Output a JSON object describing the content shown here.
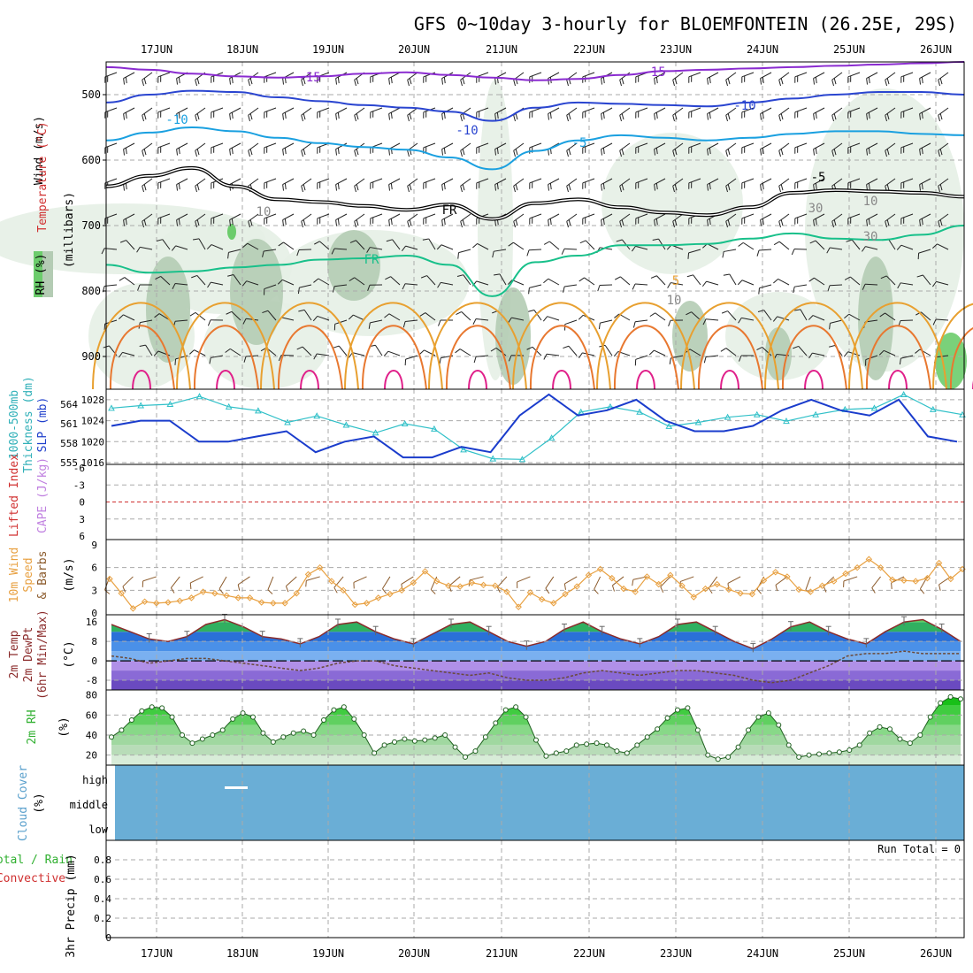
{
  "title": "GFS 0~10day 3-hourly for BLOEMFONTEIN (26.25E, 29S)",
  "colors": {
    "temp_m15": "#8a2bd0",
    "temp_m10": "#2a45d0",
    "temp_m5": "#1aa0e0",
    "freezing": "#000000",
    "temp_5": "#18c08a",
    "temp_10": "#e8a030",
    "temp_15": "#e87830",
    "temp_20": "#e0208a",
    "rh_light": "#e6f0e6",
    "rh_mid": "#b4ccb4",
    "rh_dark": "#8aa08a",
    "rh_green": "#6ccc6c",
    "slp": "#1a3ccc",
    "thickness": "#30c0c8",
    "lifted_index": "#d03030",
    "cape": "#c080e0",
    "wind10": "#e8a040",
    "barb10": "#8b5a2b",
    "temp2m_fill": "#2a7ee0",
    "dewpt_fill": "#b48ee6",
    "rh2m_fill": "#40cc40",
    "cloud": "#6aaed6",
    "rain_total": "#30b030",
    "rain_conv": "#d03030"
  },
  "chart_data": [
    {
      "type": "heatmap",
      "panel": "upper-air cross section",
      "ylabel": "(millibars)",
      "legend_labels": [
        "Wind (m/s)",
        "Temperature (°C)",
        "RH (%)"
      ],
      "yticks": [
        500,
        600,
        700,
        800,
        900
      ],
      "ylim": [
        950,
        450
      ],
      "x_dates": [
        "17JUN",
        "18JUN",
        "19JUN",
        "20JUN",
        "21JUN",
        "22JUN",
        "23JUN",
        "24JUN",
        "25JUN",
        "26JUN"
      ],
      "contour_labels": [
        "-15",
        "-15",
        "-10",
        "-10",
        "-10",
        "-5",
        "-5",
        "FR",
        "FR",
        "5",
        "10",
        "30",
        "30",
        "10",
        "10",
        "30"
      ],
      "isotherms": [
        {
          "name": "-15",
          "pressure": [
            458,
            462,
            468,
            472,
            474,
            472,
            468,
            466,
            470,
            474,
            478,
            476,
            470,
            464,
            462,
            460,
            458,
            456,
            454,
            452,
            450
          ]
        },
        {
          "name": "-10",
          "pressure": [
            512,
            500,
            494,
            496,
            504,
            510,
            516,
            520,
            526,
            540,
            520,
            512,
            514,
            516,
            518,
            512,
            506,
            500,
            496,
            496,
            500
          ]
        },
        {
          "name": "-5",
          "pressure": [
            570,
            558,
            550,
            556,
            566,
            574,
            580,
            584,
            596,
            614,
            586,
            570,
            562,
            566,
            570,
            566,
            560,
            556,
            556,
            560,
            562
          ]
        },
        {
          "name": "FR",
          "pressure": [
            640,
            624,
            612,
            640,
            660,
            664,
            670,
            676,
            668,
            690,
            666,
            660,
            672,
            680,
            684,
            672,
            650,
            646,
            648,
            650,
            656
          ]
        },
        {
          "name": "5",
          "pressure": [
            760,
            772,
            770,
            764,
            760,
            752,
            750,
            746,
            760,
            808,
            756,
            746,
            730,
            730,
            728,
            720,
            712,
            720,
            722,
            714,
            700
          ]
        }
      ]
    },
    {
      "type": "line",
      "panel": "sea level pressure and thickness",
      "series": [
        {
          "name": "Thickness 1000-500mb (dm)",
          "yticks": [
            555,
            558,
            561,
            564
          ],
          "ylim": [
            555,
            565.5
          ],
          "values": [
            563.4,
            563.8,
            564.0,
            565.2,
            563.6,
            563.0,
            561.2,
            562.2,
            560.8,
            559.6,
            561.0,
            560.2,
            557.0,
            555.6,
            555.5,
            558.8,
            562.8,
            563.6,
            562.8,
            560.6,
            561.2,
            562.0,
            562.4,
            561.4,
            562.4,
            563.2,
            563.4,
            565.5,
            563.2,
            562.4
          ]
        },
        {
          "name": "SLP (mb)",
          "yticks": [
            1016,
            1020,
            1024,
            1028
          ],
          "ylim": [
            1016,
            1029
          ],
          "values": [
            1023,
            1024,
            1024,
            1020,
            1020,
            1021,
            1022,
            1018,
            1020,
            1021,
            1017,
            1017,
            1019,
            1018,
            1025,
            1029,
            1025,
            1026,
            1028,
            1024,
            1022,
            1022,
            1023,
            1026,
            1028,
            1026,
            1025,
            1028,
            1021,
            1020
          ]
        }
      ]
    },
    {
      "type": "line",
      "panel": "lifted index and CAPE",
      "series": [
        {
          "name": "Lifted Index",
          "values": []
        },
        {
          "name": "CAPE (J/kg)",
          "values": []
        }
      ],
      "yticks_labels": [
        "-6",
        "-3",
        "0",
        "3",
        "6"
      ],
      "reference_line": 0
    },
    {
      "type": "line",
      "panel": "10m wind",
      "ylabel": "(m/s)",
      "series": [
        {
          "name": "10m Wind Speed & Barbs",
          "values": [
            4.5,
            2.6,
            0.6,
            1.5,
            1.3,
            1.4,
            1.6,
            2.0,
            2.8,
            2.6,
            2.3,
            2.0,
            2.0,
            1.4,
            1.3,
            1.3,
            2.6,
            5.1,
            6.0,
            4.2,
            3.0,
            1.1,
            1.3,
            2.0,
            2.5,
            3.0,
            4.0,
            5.5,
            4.2,
            3.6,
            3.5,
            4.0,
            3.7,
            3.6,
            2.8,
            0.8,
            2.7,
            1.8,
            1.3,
            2.5,
            3.5,
            5.0,
            5.8,
            4.6,
            3.2,
            2.8,
            4.8,
            3.8,
            5.0,
            3.6,
            2.1,
            3.2,
            3.8,
            3.1,
            2.6,
            2.5,
            4.3,
            5.4,
            4.8,
            3.1,
            2.8,
            3.6,
            4.2,
            5.2,
            6.0,
            7.1,
            6.0,
            4.4,
            4.3,
            4.2,
            4.6,
            6.6,
            4.5,
            5.8
          ]
        }
      ],
      "yticks": [
        0,
        3,
        6,
        9
      ],
      "ylim": [
        0,
        9
      ]
    },
    {
      "type": "area",
      "panel": "2m temperature and dewpoint",
      "ylabel": "(°C)",
      "yticks": [
        -8,
        0,
        8,
        16
      ],
      "ylim": [
        -12,
        19
      ],
      "series": [
        {
          "name": "2m Temp",
          "values": [
            15,
            12,
            9,
            8,
            10,
            15,
            17,
            14,
            10,
            9,
            7,
            10,
            15,
            16,
            12,
            9,
            7,
            11,
            15,
            16,
            12,
            8,
            6,
            8,
            13,
            16,
            12,
            9,
            7,
            10,
            15,
            16,
            12,
            8,
            5,
            9,
            14,
            16,
            12,
            9,
            7,
            12,
            16,
            17,
            13,
            8
          ]
        },
        {
          "name": "2m DewPt",
          "values": [
            2,
            1,
            -1,
            0,
            1,
            1,
            0,
            -1,
            -2,
            -3,
            -4,
            -3,
            -1,
            0,
            0,
            -2,
            -3,
            -4,
            -5,
            -6,
            -5,
            -7,
            -8,
            -8,
            -7,
            -5,
            -4,
            -5,
            -6,
            -5,
            -4,
            -4,
            -5,
            -6,
            -8,
            -9,
            -8,
            -5,
            -2,
            2,
            3,
            3,
            4,
            3,
            3,
            3
          ]
        }
      ],
      "series_labels": [
        "2m Temp",
        "2m DewPt",
        "(6hr Min/Max)"
      ]
    },
    {
      "type": "area",
      "panel": "2m relative humidity",
      "ylabel": "(%)",
      "yticks": [
        20,
        40,
        60,
        80
      ],
      "ylim": [
        10,
        85
      ],
      "series": [
        {
          "name": "2m RH",
          "values": [
            38,
            45,
            55,
            64,
            68,
            67,
            58,
            40,
            32,
            36,
            40,
            45,
            56,
            62,
            58,
            42,
            33,
            38,
            42,
            44,
            40,
            55,
            65,
            68,
            56,
            40,
            22,
            30,
            33,
            36,
            34,
            35,
            37,
            40,
            28,
            18,
            24,
            38,
            52,
            65,
            68,
            58,
            35,
            19,
            22,
            24,
            30,
            31,
            32,
            30,
            24,
            22,
            30,
            38,
            46,
            57,
            65,
            67,
            45,
            20,
            16,
            18,
            28,
            45,
            58,
            62,
            50,
            30,
            18,
            20,
            21,
            22,
            23,
            25,
            30,
            42,
            48,
            46,
            36,
            32,
            40,
            58,
            72,
            78,
            76
          ]
        }
      ]
    },
    {
      "type": "heatmap",
      "panel": "cloud cover",
      "ylabel": "(%)",
      "layers": [
        "high",
        "middle",
        "low"
      ],
      "values": [
        100,
        100,
        100
      ]
    },
    {
      "type": "bar",
      "panel": "3hr precipitation",
      "ylabel": "(mm)",
      "yticks": [
        0,
        0.2,
        0.4,
        0.6,
        0.8
      ],
      "ylim": [
        0,
        1
      ],
      "series": [
        {
          "name": "Total / Rain",
          "values": []
        },
        {
          "name": "Convective",
          "values": []
        }
      ],
      "annotation": "Run Total = 0"
    }
  ],
  "labels": {
    "wind": "Wind (m/s)",
    "temperature": "Temperature (°C)",
    "rh": "RH (%)",
    "millibars": "(millibars)",
    "thickness": "1000-500mb",
    "thickness2": "Thickness (dm)",
    "slp": "SLP (mb)",
    "li": "Lifted Index",
    "cape": "CAPE (J/kg)",
    "wind10": "10m Wind",
    "speed": "Speed",
    "barbs": "& Barbs",
    "ms": "(m/s)",
    "temp2m": "2m Temp",
    "dewpt": "2m DewPt",
    "minmax": "(6hr Min/Max)",
    "degc": "(°C)",
    "rh2m": "2m RH",
    "pct": "(%)",
    "cloudcover": "Cloud Cover",
    "high": "high",
    "middle": "middle",
    "low": "low",
    "totalrain": "Total / Rain",
    "convective": "Convective",
    "precip": "3hr Precip (mm)",
    "runtotal": "Run Total = 0"
  }
}
